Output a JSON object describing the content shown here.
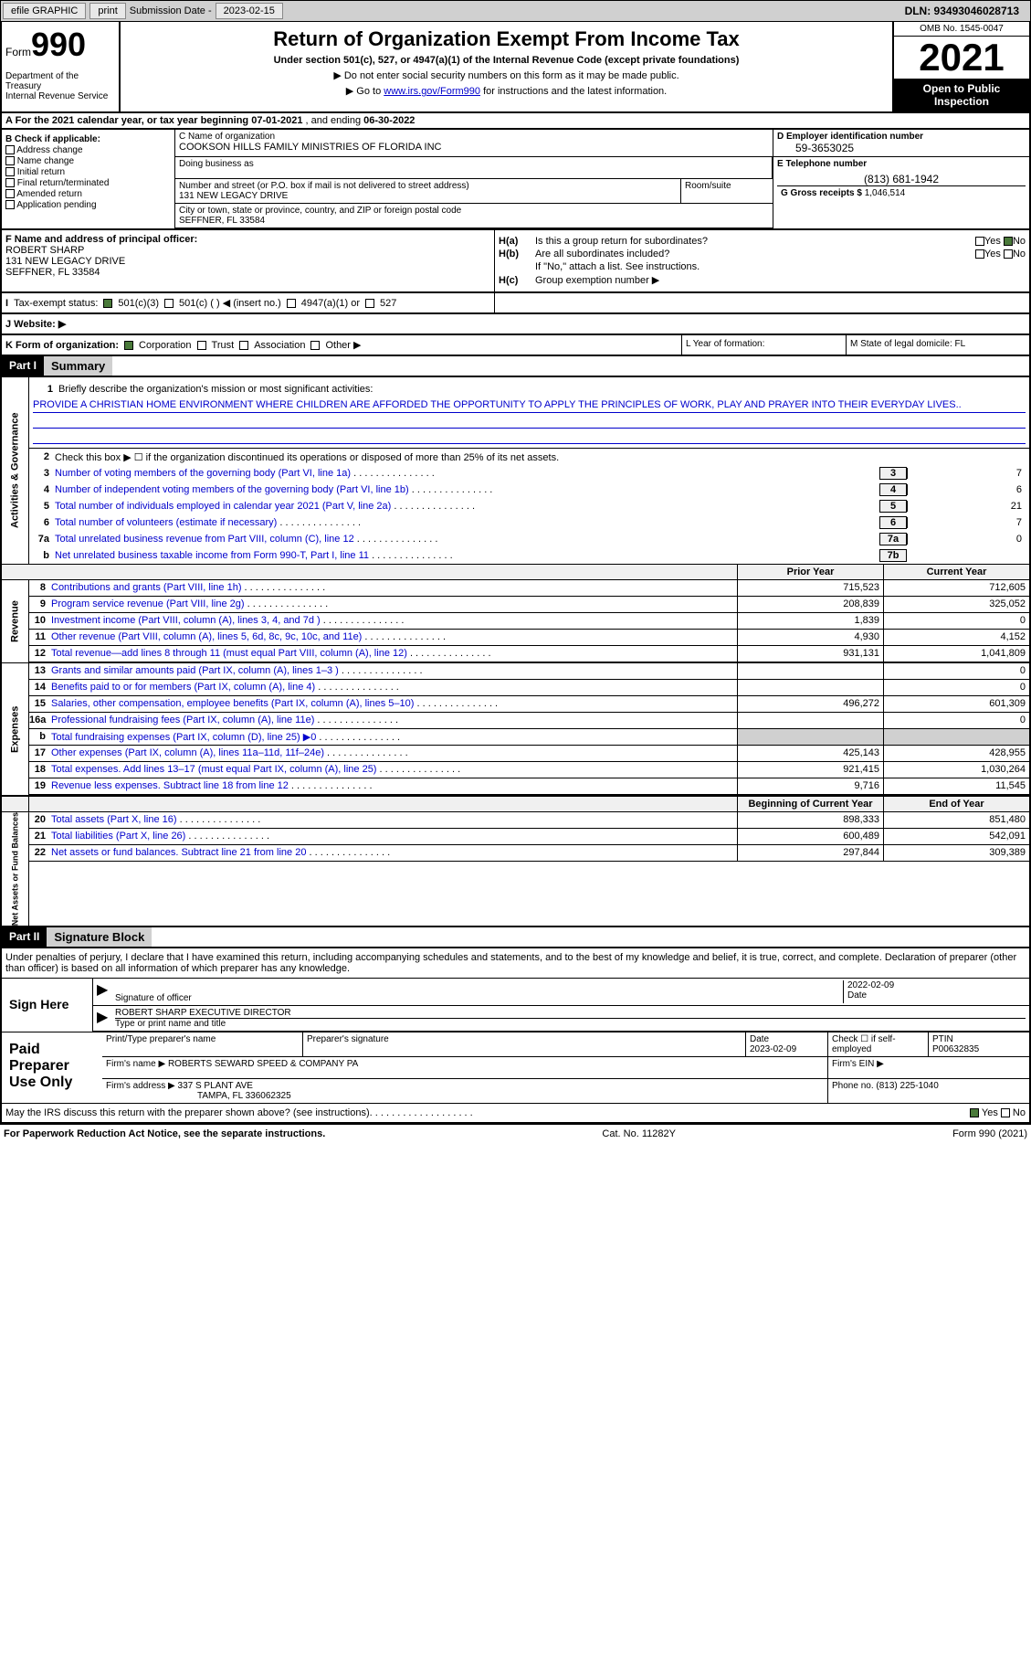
{
  "topbar": {
    "efile": "efile GRAPHIC",
    "print": "print",
    "subdate_label": "Submission Date - ",
    "subdate": "2023-02-15",
    "dln": "DLN: 93493046028713"
  },
  "header": {
    "form_label": "Form",
    "form_num": "990",
    "title": "Return of Organization Exempt From Income Tax",
    "subtitle": "Under section 501(c), 527, or 4947(a)(1) of the Internal Revenue Code (except private foundations)",
    "note1": "▶ Do not enter social security numbers on this form as it may be made public.",
    "note2_pre": "▶ Go to ",
    "note2_link": "www.irs.gov/Form990",
    "note2_post": " for instructions and the latest information.",
    "dept": "Department of the Treasury\nInternal Revenue Service",
    "omb": "OMB No. 1545-0047",
    "year": "2021",
    "inspect": "Open to Public Inspection"
  },
  "rowA": {
    "text": "A For the 2021 calendar year, or tax year beginning ",
    "begin": "07-01-2021",
    "mid": "  , and ending ",
    "end": "06-30-2022"
  },
  "colB": {
    "label": "B Check if applicable:",
    "items": [
      "Address change",
      "Name change",
      "Initial return",
      "Final return/terminated",
      "Amended return",
      "Application pending"
    ]
  },
  "colC": {
    "name_label": "C Name of organization",
    "name": "COOKSON HILLS FAMILY MINISTRIES OF FLORIDA INC",
    "dba_label": "Doing business as",
    "street_label": "Number and street (or P.O. box if mail is not delivered to street address)",
    "street": "131 NEW LEGACY DRIVE",
    "room_label": "Room/suite",
    "city_label": "City or town, state or province, country, and ZIP or foreign postal code",
    "city": "SEFFNER, FL  33584"
  },
  "colD": {
    "label": "D Employer identification number",
    "val": "59-3653025"
  },
  "colE": {
    "label": "E Telephone number",
    "val": "(813) 681-1942"
  },
  "colG": {
    "label": "G Gross receipts $ ",
    "val": "1,046,514"
  },
  "colF": {
    "label": "F Name and address of principal officer:",
    "name": "ROBERT SHARP",
    "street": "131 NEW LEGACY DRIVE",
    "city": "SEFFNER, FL  33584"
  },
  "colH": {
    "ha": "Is this a group return for subordinates?",
    "hb": "Are all subordinates included?",
    "hb_note": "If \"No,\" attach a list. See instructions.",
    "hc": "Group exemption number ▶"
  },
  "rowI": {
    "label": "Tax-exempt status:",
    "opts": [
      "501(c)(3)",
      "501(c) (  ) ◀ (insert no.)",
      "4947(a)(1) or",
      "527"
    ]
  },
  "rowJ": {
    "label": "J   Website: ▶"
  },
  "rowK": {
    "label": "K Form of organization:",
    "opts": [
      "Corporation",
      "Trust",
      "Association",
      "Other ▶"
    ]
  },
  "colL": "L Year of formation:",
  "colM": "M State of legal domicile: FL",
  "part1": {
    "hdr": "Part I",
    "title": "Summary"
  },
  "summary": {
    "mission_label": "Briefly describe the organization's mission or most significant activities:",
    "mission": "PROVIDE A CHRISTIAN HOME ENVIRONMENT WHERE CHILDREN ARE AFFORDED THE OPPORTUNITY TO APPLY THE PRINCIPLES OF WORK, PLAY AND PRAYER INTO THEIR EVERYDAY LIVES..",
    "line2": "Check this box ▶ ☐ if the organization discontinued its operations or disposed of more than 25% of its net assets.",
    "sides": {
      "gov": "Activities & Governance",
      "rev": "Revenue",
      "exp": "Expenses",
      "net": "Net Assets or Fund Balances"
    },
    "lines_single": [
      {
        "n": "3",
        "t": "Number of voting members of the governing body (Part VI, line 1a)",
        "box": "3",
        "v": "7"
      },
      {
        "n": "4",
        "t": "Number of independent voting members of the governing body (Part VI, line 1b)",
        "box": "4",
        "v": "6"
      },
      {
        "n": "5",
        "t": "Total number of individuals employed in calendar year 2021 (Part V, line 2a)",
        "box": "5",
        "v": "21"
      },
      {
        "n": "6",
        "t": "Total number of volunteers (estimate if necessary)",
        "box": "6",
        "v": "7"
      },
      {
        "n": "7a",
        "t": "Total unrelated business revenue from Part VIII, column (C), line 12",
        "box": "7a",
        "v": "0"
      },
      {
        "n": "b",
        "t": "Net unrelated business taxable income from Form 990-T, Part I, line 11",
        "box": "7b",
        "v": ""
      }
    ],
    "hdr_prior": "Prior Year",
    "hdr_current": "Current Year",
    "revenue": [
      {
        "n": "8",
        "t": "Contributions and grants (Part VIII, line 1h)",
        "p": "715,523",
        "c": "712,605"
      },
      {
        "n": "9",
        "t": "Program service revenue (Part VIII, line 2g)",
        "p": "208,839",
        "c": "325,052"
      },
      {
        "n": "10",
        "t": "Investment income (Part VIII, column (A), lines 3, 4, and 7d )",
        "p": "1,839",
        "c": "0"
      },
      {
        "n": "11",
        "t": "Other revenue (Part VIII, column (A), lines 5, 6d, 8c, 9c, 10c, and 11e)",
        "p": "4,930",
        "c": "4,152"
      },
      {
        "n": "12",
        "t": "Total revenue—add lines 8 through 11 (must equal Part VIII, column (A), line 12)",
        "p": "931,131",
        "c": "1,041,809"
      }
    ],
    "expenses": [
      {
        "n": "13",
        "t": "Grants and similar amounts paid (Part IX, column (A), lines 1–3 )",
        "p": "",
        "c": "0"
      },
      {
        "n": "14",
        "t": "Benefits paid to or for members (Part IX, column (A), line 4)",
        "p": "",
        "c": "0"
      },
      {
        "n": "15",
        "t": "Salaries, other compensation, employee benefits (Part IX, column (A), lines 5–10)",
        "p": "496,272",
        "c": "601,309"
      },
      {
        "n": "16a",
        "t": "Professional fundraising fees (Part IX, column (A), line 11e)",
        "p": "",
        "c": "0"
      },
      {
        "n": "b",
        "t": "Total fundraising expenses (Part IX, column (D), line 25) ▶0",
        "p": "SHADE",
        "c": "SHADE"
      },
      {
        "n": "17",
        "t": "Other expenses (Part IX, column (A), lines 11a–11d, 11f–24e)",
        "p": "425,143",
        "c": "428,955"
      },
      {
        "n": "18",
        "t": "Total expenses. Add lines 13–17 (must equal Part IX, column (A), line 25)",
        "p": "921,415",
        "c": "1,030,264"
      },
      {
        "n": "19",
        "t": "Revenue less expenses. Subtract line 18 from line 12",
        "p": "9,716",
        "c": "11,545"
      }
    ],
    "hdr_begin": "Beginning of Current Year",
    "hdr_end": "End of Year",
    "netassets": [
      {
        "n": "20",
        "t": "Total assets (Part X, line 16)",
        "p": "898,333",
        "c": "851,480"
      },
      {
        "n": "21",
        "t": "Total liabilities (Part X, line 26)",
        "p": "600,489",
        "c": "542,091"
      },
      {
        "n": "22",
        "t": "Net assets or fund balances. Subtract line 21 from line 20",
        "p": "297,844",
        "c": "309,389"
      }
    ]
  },
  "part2": {
    "hdr": "Part II",
    "title": "Signature Block"
  },
  "sig": {
    "declare": "Under penalties of perjury, I declare that I have examined this return, including accompanying schedules and statements, and to the best of my knowledge and belief, it is true, correct, and complete. Declaration of preparer (other than officer) is based on all information of which preparer has any knowledge.",
    "sign_here": "Sign Here",
    "sig_officer": "Signature of officer",
    "sig_date": "2022-02-09",
    "date_label": "Date",
    "officer_name": "ROBERT SHARP  EXECUTIVE DIRECTOR",
    "name_label": "Type or print name and title",
    "paid": "Paid Preparer Use Only",
    "prep_name_label": "Print/Type preparer's name",
    "prep_sig_label": "Preparer's signature",
    "prep_date_label": "Date",
    "prep_date": "2023-02-09",
    "self_emp": "Check ☐ if self-employed",
    "ptin_label": "PTIN",
    "ptin": "P00632835",
    "firm_name_label": "Firm's name    ▶",
    "firm_name": "ROBERTS SEWARD SPEED & COMPANY PA",
    "firm_ein_label": "Firm's EIN ▶",
    "firm_addr_label": "Firm's address ▶",
    "firm_addr": "337 S PLANT AVE",
    "firm_city": "TAMPA, FL  336062325",
    "phone_label": "Phone no.",
    "phone": "(813) 225-1040",
    "discuss": "May the IRS discuss this return with the preparer shown above? (see instructions)"
  },
  "footer": {
    "left": "For Paperwork Reduction Act Notice, see the separate instructions.",
    "mid": "Cat. No. 11282Y",
    "right": "Form 990 (2021)"
  }
}
